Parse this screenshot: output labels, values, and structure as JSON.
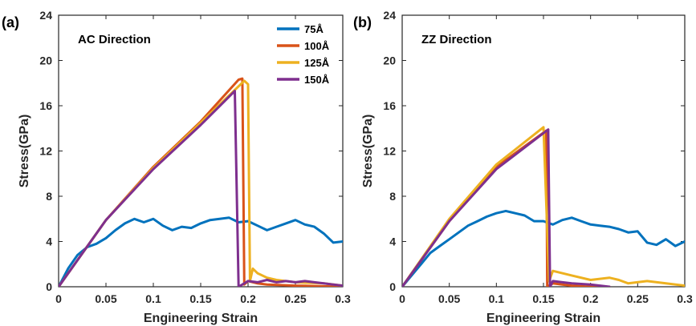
{
  "chart_data": [
    {
      "type": "line",
      "panel_label": "(a)",
      "annotation": "AC Direction",
      "xlabel": "Engineering Strain",
      "ylabel": "Stress(GPa)",
      "xlim": [
        0,
        0.3
      ],
      "ylim": [
        0,
        24
      ],
      "xticks": [
        0,
        0.05,
        0.1,
        0.15,
        0.2,
        0.25,
        0.3
      ],
      "xtick_labels": [
        "0",
        "0.05",
        "0.1",
        "0.15",
        "0.2",
        "0.25",
        "0.3"
      ],
      "yticks": [
        0,
        4,
        8,
        12,
        16,
        20,
        24
      ],
      "ytick_labels": [
        "0",
        "4",
        "8",
        "12",
        "16",
        "20",
        "24"
      ],
      "grid": false,
      "legend": "top-right",
      "series": [
        {
          "name": "75Å",
          "color": "#0072BD",
          "x": [
            0,
            0.01,
            0.02,
            0.03,
            0.04,
            0.05,
            0.06,
            0.07,
            0.08,
            0.09,
            0.1,
            0.11,
            0.12,
            0.13,
            0.14,
            0.15,
            0.16,
            0.17,
            0.18,
            0.19,
            0.2,
            0.21,
            0.22,
            0.23,
            0.24,
            0.25,
            0.26,
            0.27,
            0.28,
            0.29,
            0.3
          ],
          "y": [
            0,
            1.6,
            2.8,
            3.5,
            3.8,
            4.3,
            5.0,
            5.6,
            6.0,
            5.7,
            6.0,
            5.4,
            5.0,
            5.3,
            5.2,
            5.6,
            5.9,
            6.0,
            6.1,
            5.7,
            5.8,
            5.4,
            5.0,
            5.3,
            5.6,
            5.9,
            5.5,
            5.3,
            4.7,
            3.9,
            4.0
          ]
        },
        {
          "name": "100Å",
          "color": "#D95319",
          "x": [
            0,
            0.05,
            0.1,
            0.15,
            0.19,
            0.194,
            0.196,
            0.2,
            0.21,
            0.22,
            0.25,
            0.3
          ],
          "y": [
            0,
            5.9,
            10.6,
            14.6,
            18.3,
            18.4,
            0.2,
            0.5,
            0.3,
            0.2,
            0.1,
            0.0
          ]
        },
        {
          "name": "125Å",
          "color": "#EDB120",
          "x": [
            0,
            0.05,
            0.1,
            0.15,
            0.196,
            0.2,
            0.202,
            0.205,
            0.21,
            0.22,
            0.23,
            0.25,
            0.28,
            0.3
          ],
          "y": [
            0,
            5.9,
            10.5,
            14.5,
            18.2,
            17.9,
            0.5,
            1.6,
            1.2,
            0.8,
            0.6,
            0.4,
            0.3,
            0.1
          ]
        },
        {
          "name": "150Å",
          "color": "#7E2F8E",
          "x": [
            0,
            0.05,
            0.1,
            0.15,
            0.186,
            0.19,
            0.2,
            0.21,
            0.22,
            0.23,
            0.24,
            0.25,
            0.26,
            0.27,
            0.28,
            0.29,
            0.3
          ],
          "y": [
            0,
            5.9,
            10.4,
            14.3,
            17.3,
            0.0,
            0.5,
            0.4,
            0.6,
            0.4,
            0.5,
            0.4,
            0.5,
            0.4,
            0.3,
            0.2,
            0.1
          ]
        }
      ]
    },
    {
      "type": "line",
      "panel_label": "(b)",
      "annotation": "ZZ Direction",
      "xlabel": "Engineering Strain",
      "ylabel": "Stress(GPa)",
      "xlim": [
        0,
        0.3
      ],
      "ylim": [
        0,
        24
      ],
      "xticks": [
        0,
        0.05,
        0.1,
        0.15,
        0.2,
        0.25,
        0.3
      ],
      "xtick_labels": [
        "0",
        "0.05",
        "0.1",
        "0.15",
        "0.2",
        "0.25",
        "0.3"
      ],
      "yticks": [
        0,
        4,
        8,
        12,
        16,
        20,
        24
      ],
      "ytick_labels": [
        "0",
        "4",
        "8",
        "12",
        "16",
        "20",
        "24"
      ],
      "grid": false,
      "series": [
        {
          "name": "75Å",
          "color": "#0072BD",
          "x": [
            0,
            0.01,
            0.02,
            0.03,
            0.04,
            0.05,
            0.06,
            0.07,
            0.08,
            0.09,
            0.1,
            0.11,
            0.12,
            0.13,
            0.14,
            0.15,
            0.16,
            0.17,
            0.18,
            0.19,
            0.2,
            0.21,
            0.22,
            0.23,
            0.24,
            0.25,
            0.26,
            0.27,
            0.28,
            0.29,
            0.3
          ],
          "y": [
            0,
            1.0,
            2.0,
            3.0,
            3.6,
            4.2,
            4.8,
            5.4,
            5.8,
            6.2,
            6.5,
            6.7,
            6.5,
            6.3,
            5.8,
            5.8,
            5.5,
            5.9,
            6.1,
            5.8,
            5.5,
            5.4,
            5.3,
            5.1,
            4.8,
            4.9,
            3.9,
            3.7,
            4.2,
            3.6,
            4.0
          ]
        },
        {
          "name": "100Å",
          "color": "#D95319",
          "x": [
            0,
            0.05,
            0.1,
            0.153,
            0.154,
            0.16,
            0.17,
            0.18,
            0.2,
            0.22
          ],
          "y": [
            0,
            5.8,
            10.6,
            13.8,
            0.0,
            0.3,
            0.2,
            0.1,
            0.0,
            0.0
          ]
        },
        {
          "name": "125Å",
          "color": "#EDB120",
          "x": [
            0,
            0.05,
            0.1,
            0.15,
            0.156,
            0.16,
            0.18,
            0.2,
            0.22,
            0.23,
            0.24,
            0.26,
            0.28,
            0.3
          ],
          "y": [
            0,
            6.0,
            10.8,
            14.1,
            0.5,
            1.4,
            1.0,
            0.6,
            0.8,
            0.6,
            0.3,
            0.5,
            0.3,
            0.1
          ]
        },
        {
          "name": "150Å",
          "color": "#7E2F8E",
          "x": [
            0,
            0.05,
            0.1,
            0.155,
            0.157,
            0.16,
            0.17,
            0.18,
            0.2,
            0.22
          ],
          "y": [
            0,
            5.8,
            10.4,
            13.9,
            0.0,
            0.5,
            0.4,
            0.3,
            0.2,
            0.0
          ]
        }
      ]
    }
  ]
}
